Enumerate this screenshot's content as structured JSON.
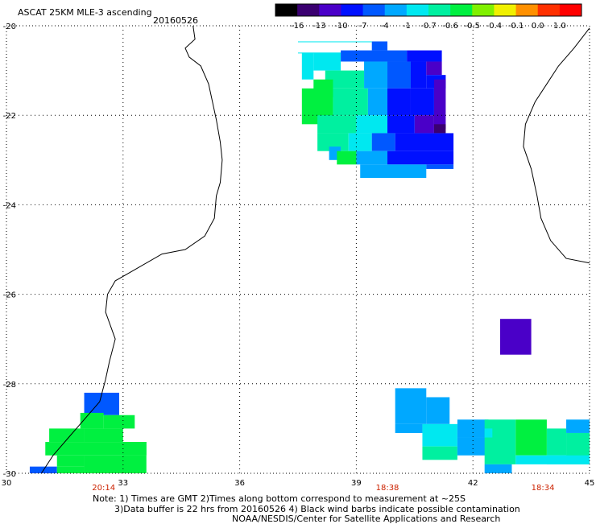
{
  "header": {
    "title": "ASCAT 25KM MLE-3 ascending",
    "date": "20160526"
  },
  "colorbar": {
    "labels": [
      "-16",
      "-13",
      "-10",
      "-7",
      "-4",
      "-1",
      "-0.7",
      "-0.6",
      "-0.5",
      "-0.4",
      "-0.1",
      "0.0",
      "1.0"
    ],
    "colors": [
      "#000000",
      "#3a0070",
      "#4a00c8",
      "#0010ff",
      "#0058ff",
      "#00a8ff",
      "#00e8f0",
      "#00f0a0",
      "#00f040",
      "#80f000",
      "#f0f000",
      "#ff9000",
      "#ff3000",
      "#ff0000"
    ]
  },
  "map": {
    "lon_min": 30,
    "lon_max": 45,
    "lat_min": -30,
    "lat_max": -20,
    "x_ticks": [
      "30",
      "33",
      "36",
      "39",
      "42",
      "45"
    ],
    "y_ticks": [
      "-20",
      "-22",
      "-24",
      "-26",
      "-28",
      "-30"
    ],
    "pass_times": [
      {
        "lon": 32.5,
        "time": "20:14"
      },
      {
        "lon": 39.8,
        "time": "18:38"
      },
      {
        "lon": 43.8,
        "time": "18:34"
      }
    ]
  },
  "footer": {
    "line1": "Note: 1) Times are GMT 2)Times along bottom correspond to measurement at ~25S",
    "line2": "3)Data buffer is 22 hrs from 20160526 4) Black wind barbs indicate possible contamination",
    "line3": "NOAA/NESDIS/Center for Satellite Applications and Research"
  }
}
